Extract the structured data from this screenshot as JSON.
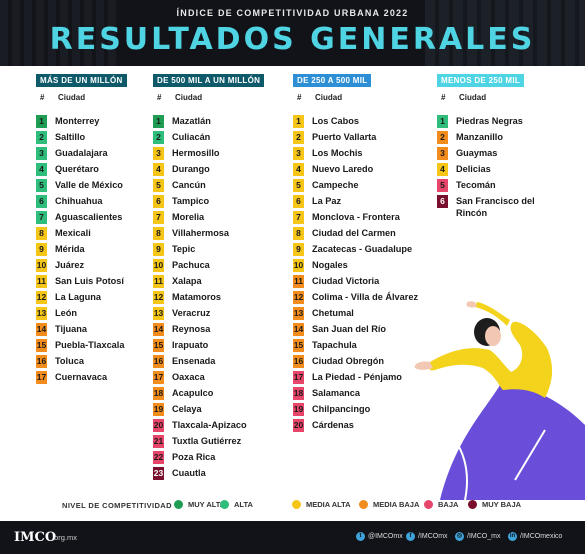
{
  "header": {
    "subtitle": "ÍNDICE DE COMPETITIVIDAD URBANA 2022",
    "title": "RESULTADOS GENERALES"
  },
  "colors": {
    "muy_alta": "#1f9d55",
    "alta": "#2ebd7a",
    "media_alta": "#f5c518",
    "media_baja": "#f28c1c",
    "baja": "#e8456b",
    "muy_baja": "#7a0f2d"
  },
  "columns": [
    {
      "heading": "MÁS DE UN MILLÓN",
      "heading_color": "#0e5a6b",
      "num_label": "#",
      "city_label": "Ciudad",
      "rows": [
        {
          "n": "1",
          "city": "Monterrey",
          "level": "muy_alta"
        },
        {
          "n": "2",
          "city": "Saltillo",
          "level": "alta"
        },
        {
          "n": "3",
          "city": "Guadalajara",
          "level": "alta"
        },
        {
          "n": "4",
          "city": "Querétaro",
          "level": "alta"
        },
        {
          "n": "5",
          "city": "Valle de México",
          "level": "alta"
        },
        {
          "n": "6",
          "city": "Chihuahua",
          "level": "alta"
        },
        {
          "n": "7",
          "city": "Aguascalientes",
          "level": "alta"
        },
        {
          "n": "8",
          "city": "Mexicali",
          "level": "media_alta"
        },
        {
          "n": "9",
          "city": "Mérida",
          "level": "media_alta"
        },
        {
          "n": "10",
          "city": "Juárez",
          "level": "media_alta"
        },
        {
          "n": "11",
          "city": "San Luis Potosí",
          "level": "media_alta"
        },
        {
          "n": "12",
          "city": "La Laguna",
          "level": "media_alta"
        },
        {
          "n": "13",
          "city": "León",
          "level": "media_alta"
        },
        {
          "n": "14",
          "city": "Tijuana",
          "level": "media_baja"
        },
        {
          "n": "15",
          "city": "Puebla-Tlaxcala",
          "level": "media_baja"
        },
        {
          "n": "16",
          "city": "Toluca",
          "level": "media_baja"
        },
        {
          "n": "17",
          "city": "Cuernavaca",
          "level": "media_baja"
        }
      ]
    },
    {
      "heading": "DE 500 MIL A UN MILLÓN",
      "heading_color": "#0e5a6b",
      "num_label": "#",
      "city_label": "Ciudad",
      "rows": [
        {
          "n": "1",
          "city": "Mazatlán",
          "level": "muy_alta"
        },
        {
          "n": "2",
          "city": "Culiacán",
          "level": "alta"
        },
        {
          "n": "3",
          "city": "Hermosillo",
          "level": "media_alta"
        },
        {
          "n": "4",
          "city": "Durango",
          "level": "media_alta"
        },
        {
          "n": "5",
          "city": "Cancún",
          "level": "media_alta"
        },
        {
          "n": "6",
          "city": "Tampico",
          "level": "media_alta"
        },
        {
          "n": "7",
          "city": "Morelia",
          "level": "media_alta"
        },
        {
          "n": "8",
          "city": "Villahermosa",
          "level": "media_alta"
        },
        {
          "n": "9",
          "city": "Tepic",
          "level": "media_alta"
        },
        {
          "n": "10",
          "city": "Pachuca",
          "level": "media_alta"
        },
        {
          "n": "11",
          "city": "Xalapa",
          "level": "media_alta"
        },
        {
          "n": "12",
          "city": "Matamoros",
          "level": "media_alta"
        },
        {
          "n": "13",
          "city": "Veracruz",
          "level": "media_alta"
        },
        {
          "n": "14",
          "city": "Reynosa",
          "level": "media_baja"
        },
        {
          "n": "15",
          "city": "Irapuato",
          "level": "media_baja"
        },
        {
          "n": "16",
          "city": "Ensenada",
          "level": "media_baja"
        },
        {
          "n": "17",
          "city": "Oaxaca",
          "level": "media_baja"
        },
        {
          "n": "18",
          "city": "Acapulco",
          "level": "media_baja"
        },
        {
          "n": "19",
          "city": "Celaya",
          "level": "media_baja"
        },
        {
          "n": "20",
          "city": "Tlaxcala-Apizaco",
          "level": "baja"
        },
        {
          "n": "21",
          "city": "Tuxtla Gutiérrez",
          "level": "baja"
        },
        {
          "n": "22",
          "city": "Poza Rica",
          "level": "baja"
        },
        {
          "n": "23",
          "city": "Cuautla",
          "level": "muy_baja"
        }
      ]
    },
    {
      "heading": "DE 250 A 500 MIL",
      "heading_color": "#2c8fd6",
      "num_label": "#",
      "city_label": "Ciudad",
      "rows": [
        {
          "n": "1",
          "city": "Los Cabos",
          "level": "media_alta"
        },
        {
          "n": "2",
          "city": "Puerto Vallarta",
          "level": "media_alta"
        },
        {
          "n": "3",
          "city": "Los Mochis",
          "level": "media_alta"
        },
        {
          "n": "4",
          "city": "Nuevo Laredo",
          "level": "media_alta"
        },
        {
          "n": "5",
          "city": "Campeche",
          "level": "media_alta"
        },
        {
          "n": "6",
          "city": "La Paz",
          "level": "media_alta"
        },
        {
          "n": "7",
          "city": "Monclova - Frontera",
          "level": "media_alta"
        },
        {
          "n": "8",
          "city": "Ciudad del Carmen",
          "level": "media_alta"
        },
        {
          "n": "9",
          "city": "Zacatecas - Guadalupe",
          "level": "media_alta"
        },
        {
          "n": "10",
          "city": "Nogales",
          "level": "media_alta"
        },
        {
          "n": "11",
          "city": "Ciudad Victoria",
          "level": "media_baja"
        },
        {
          "n": "12",
          "city": "Colima - Villa de Álvarez",
          "level": "media_baja"
        },
        {
          "n": "13",
          "city": "Chetumal",
          "level": "media_baja"
        },
        {
          "n": "14",
          "city": "San Juan del Río",
          "level": "media_baja"
        },
        {
          "n": "15",
          "city": "Tapachula",
          "level": "media_baja"
        },
        {
          "n": "16",
          "city": "Ciudad Obregón",
          "level": "media_baja"
        },
        {
          "n": "17",
          "city": "La Piedad - Pénjamo",
          "level": "baja"
        },
        {
          "n": "18",
          "city": "Salamanca",
          "level": "baja"
        },
        {
          "n": "19",
          "city": "Chilpancingo",
          "level": "baja"
        },
        {
          "n": "20",
          "city": "Cárdenas",
          "level": "baja"
        }
      ]
    },
    {
      "heading": "MENOS DE 250 MIL",
      "heading_color": "#4fd4e4",
      "num_label": "#",
      "city_label": "Ciudad",
      "rows": [
        {
          "n": "1",
          "city": "Piedras Negras",
          "level": "alta"
        },
        {
          "n": "2",
          "city": "Manzanillo",
          "level": "media_baja"
        },
        {
          "n": "3",
          "city": "Guaymas",
          "level": "media_baja"
        },
        {
          "n": "4",
          "city": "Delicias",
          "level": "media_alta"
        },
        {
          "n": "5",
          "city": "Tecomán",
          "level": "baja"
        },
        {
          "n": "6",
          "city": "San Francisco del Rincón",
          "level": "muy_baja"
        }
      ]
    }
  ],
  "legend": {
    "title": "NIVEL DE COMPETITIVIDAD",
    "items": [
      {
        "label": "MUY ALTA",
        "level": "muy_alta"
      },
      {
        "label": "ALTA",
        "level": "alta"
      },
      {
        "label": "MEDIA ALTA",
        "level": "media_alta"
      },
      {
        "label": "MEDIA BAJA",
        "level": "media_baja"
      },
      {
        "label": "BAJA",
        "level": "baja"
      },
      {
        "label": "MUY BAJA",
        "level": "muy_baja"
      }
    ]
  },
  "footer": {
    "logo": "IMCO",
    "url": ".org.mx",
    "social": [
      {
        "icon": "twitter-icon",
        "text": "@IMCOmx"
      },
      {
        "icon": "facebook-icon",
        "text": "/IMCOmx"
      },
      {
        "icon": "instagram-icon",
        "text": "/IMCO_mx"
      },
      {
        "icon": "linkedin-icon",
        "text": "/IMCOmexico"
      }
    ]
  }
}
